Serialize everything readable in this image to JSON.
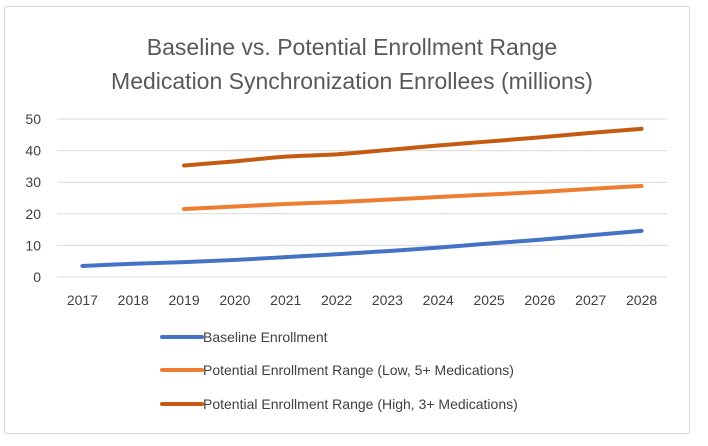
{
  "chart_data": {
    "type": "line",
    "title": [
      "Baseline vs. Potential Enrollment Range",
      "Medication Synchronization Enrollees (millions)"
    ],
    "categories": [
      "2017",
      "2018",
      "2019",
      "2020",
      "2021",
      "2022",
      "2023",
      "2024",
      "2025",
      "2026",
      "2027",
      "2028"
    ],
    "ylim": [
      0,
      50
    ],
    "yticks": [
      0,
      10,
      20,
      30,
      40,
      50
    ],
    "grid": true,
    "legend_position": "bottom",
    "series": [
      {
        "name": "Baseline Enrollment",
        "color": "#4472c4",
        "values": [
          3.5,
          4.2,
          4.7,
          5.4,
          6.3,
          7.2,
          8.2,
          9.3,
          10.6,
          11.8,
          13.2,
          14.6
        ]
      },
      {
        "name": "Potential Enrollment Range (Low, 5+ Medications)",
        "color": "#ed7d31",
        "values": [
          null,
          null,
          21.5,
          22.3,
          23.1,
          23.7,
          24.5,
          25.3,
          26.1,
          26.9,
          27.9,
          28.8
        ]
      },
      {
        "name": "Potential Enrollment Range (High, 3+ Medications)",
        "color": "#c55a11",
        "values": [
          null,
          null,
          35.3,
          36.6,
          38.1,
          38.8,
          40.2,
          41.6,
          42.9,
          44.2,
          45.6,
          46.9
        ]
      }
    ]
  }
}
